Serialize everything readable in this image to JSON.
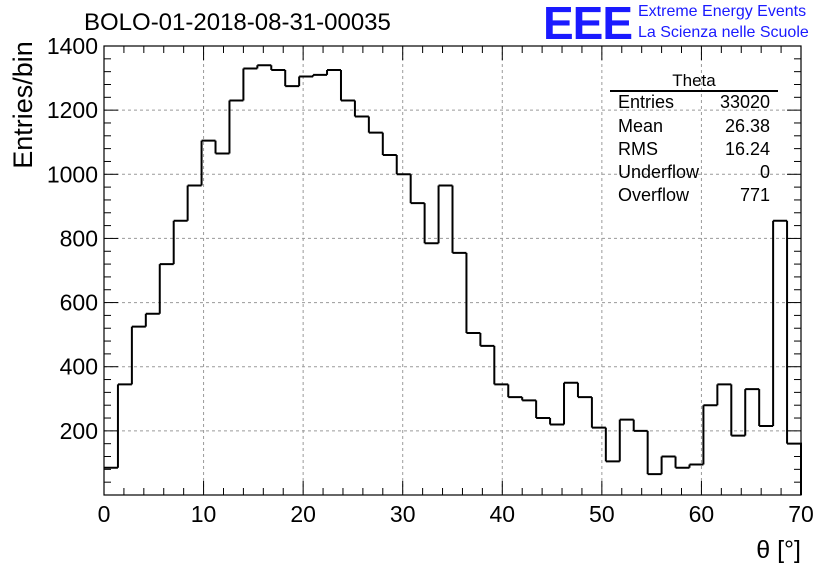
{
  "title": "BOLO-01-2018-08-31-00035",
  "logo": {
    "mark": "EEE",
    "line1": "Extreme Energy Events",
    "line2": "La Scienza nelle Scuole",
    "color": "#1a1aff"
  },
  "stats": {
    "name": "Theta",
    "rows": [
      {
        "label": "Entries",
        "value": "33020"
      },
      {
        "label": "Mean",
        "value": "26.38"
      },
      {
        "label": "RMS",
        "value": "16.24"
      },
      {
        "label": "Underflow",
        "value": "0"
      },
      {
        "label": "Overflow",
        "value": "771"
      }
    ]
  },
  "chart_data": {
    "type": "histogram",
    "xlabel": "θ [°]",
    "ylabel": "Entries/bin",
    "xlim": [
      0,
      70
    ],
    "ylim": [
      0,
      1400
    ],
    "grid": true,
    "bin_width": 1.4,
    "x_ticks": [
      0,
      10,
      20,
      30,
      40,
      50,
      60,
      70
    ],
    "y_ticks": [
      200,
      400,
      600,
      800,
      1000,
      1200,
      1400
    ],
    "values": [
      85,
      345,
      525,
      565,
      720,
      855,
      965,
      1105,
      1065,
      1230,
      1330,
      1340,
      1325,
      1275,
      1305,
      1310,
      1325,
      1230,
      1180,
      1130,
      1060,
      1000,
      910,
      785,
      965,
      755,
      505,
      465,
      345,
      305,
      295,
      240,
      220,
      350,
      305,
      210,
      105,
      235,
      200,
      65,
      120,
      85,
      95,
      280,
      345,
      185,
      330,
      215,
      855,
      160
    ]
  }
}
